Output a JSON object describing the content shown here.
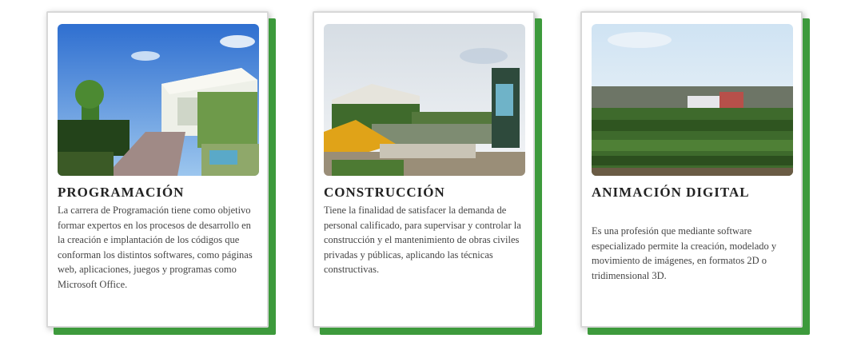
{
  "cards": [
    {
      "title": "PROGRAMACIÓN",
      "description": "La carrera de Programación tiene como objetivo formar expertos en los procesos de desarrollo en la creación e implantación de los códigos que conforman los distintos softwares, como páginas web, aplicaciones, juegos y programas como Microsoft Office.",
      "image": "campus-building-photo"
    },
    {
      "title": "CONSTRUCCIÓN",
      "description": "Tiene la finalidad de satisfacer la demanda de personal calificado, para supervisar y controlar la construcción y el mantenimiento de obras civiles privadas y públicas, aplicando las técnicas constructivas.",
      "image": "construction-site-photo"
    },
    {
      "title": "ANIMACIÓN DIGITAL",
      "description": "Es una profesión que mediante software especializado permite la creación, modelado y movimiento de imágenes, en formatos 2D o tridimensional 3D.",
      "image": "campus-panorama-photo"
    }
  ]
}
